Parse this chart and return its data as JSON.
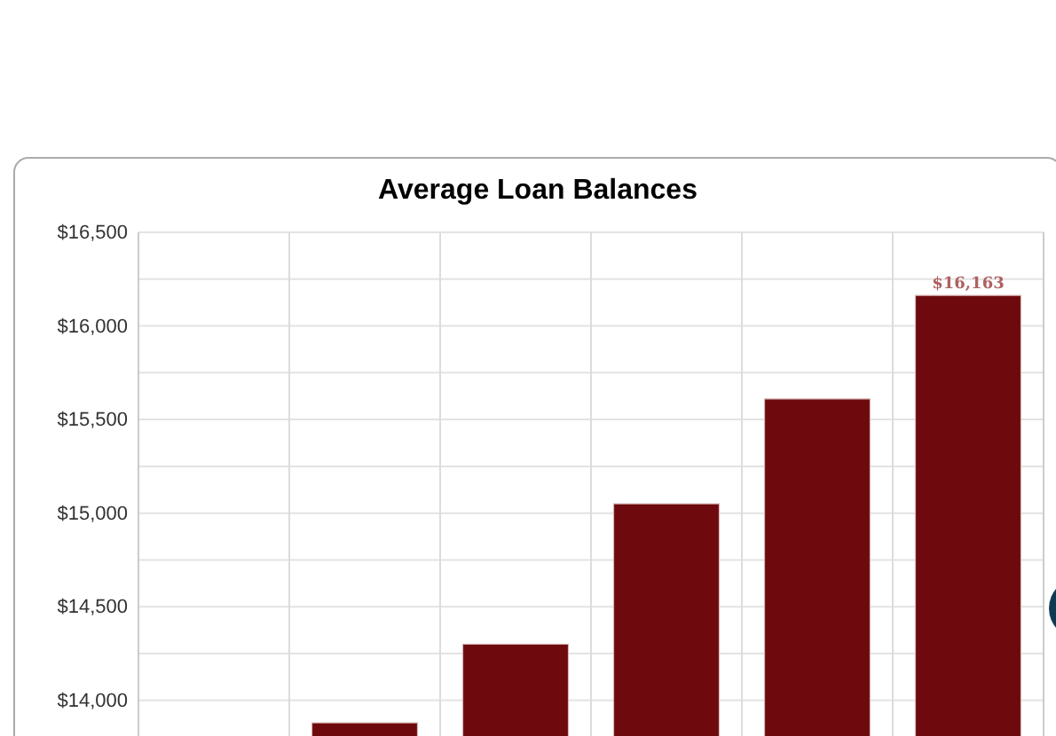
{
  "chart_data": {
    "type": "bar",
    "title": "Average Loan Balances",
    "categories": [
      null,
      null,
      null,
      null,
      null,
      null
    ],
    "values": [
      null,
      13880,
      14300,
      15050,
      15610,
      16163
    ],
    "value_labels": [
      null,
      null,
      null,
      null,
      null,
      "$16,163"
    ],
    "color": "#6e0a0d",
    "ylim": [
      13800,
      16500
    ],
    "yticks": [
      {
        "value": 14000,
        "label": "$14,000"
      },
      {
        "value": 14250,
        "label": null
      },
      {
        "value": 14500,
        "label": "$14,500"
      },
      {
        "value": 14750,
        "label": null
      },
      {
        "value": 15000,
        "label": "$15,000"
      },
      {
        "value": 15250,
        "label": null
      },
      {
        "value": 15500,
        "label": "$15,500"
      },
      {
        "value": 15750,
        "label": null
      },
      {
        "value": 16000,
        "label": "$16,000"
      },
      {
        "value": 16250,
        "label": null
      },
      {
        "value": 16500,
        "label": "$16,500"
      }
    ],
    "grid": true
  }
}
